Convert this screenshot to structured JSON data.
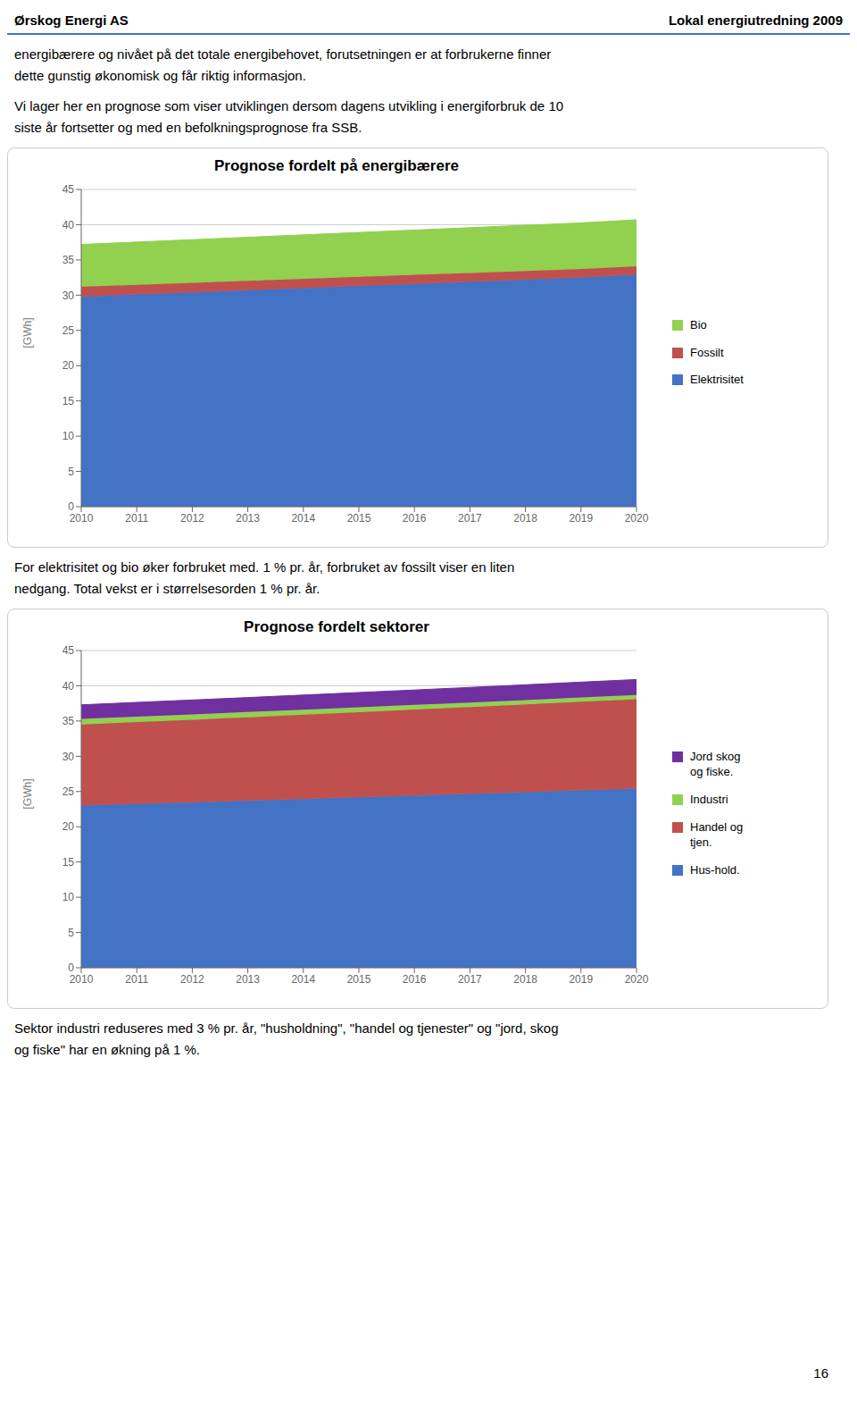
{
  "annotations": [
    "Ørskog Energi AS",
    "Lokal energiutredning 2009",
    "energibærere og nivået på det totale energibehovet, forutsetningen er at forbrukerne finner\ndette gunstig økonomisk og får riktig informasjon.",
    "Vi lager her en prognose som viser utviklingen dersom dagens utvikling i energiforbruk de 10\nsiste år fortsetter og med en befolkningsprognose fra SSB.",
    "For elektrisitet og bio øker forbruket med. 1 % pr. år, forbruket av fossilt viser en liten\nnedgang. Total vekst er i størrelsesorden 1 % pr. år.",
    "Sektor industri reduseres med  3 % pr. år, \"husholdning\", \"handel og tjenester\" og \"jord, skog\nog fiske\" har en økning på 1 %.",
    "16"
  ],
  "chart_data": [
    {
      "type": "area",
      "stacked": true,
      "grid": true,
      "title": "Prognose fordelt på energibærere",
      "ylabel": "[GWh]",
      "x": [
        2010,
        2011,
        2012,
        2013,
        2014,
        2015,
        2016,
        2017,
        2018,
        2019,
        2020
      ],
      "xlim": [
        2010,
        2020
      ],
      "xticks": [
        2010,
        2011,
        2012,
        2013,
        2014,
        2015,
        2016,
        2017,
        2018,
        2019,
        2020
      ],
      "ylim": [
        0,
        45
      ],
      "yticks": [
        0,
        5,
        10,
        15,
        20,
        25,
        30,
        35,
        40,
        45
      ],
      "series": [
        {
          "name": "Elektrisitet",
          "color": "#4472c4",
          "values": [
            29.8,
            30.1,
            30.4,
            30.7,
            31.0,
            31.3,
            31.6,
            31.9,
            32.2,
            32.5,
            32.9
          ]
        },
        {
          "name": "Fossilt",
          "color": "#c0504d",
          "values": [
            1.4,
            1.38,
            1.36,
            1.34,
            1.32,
            1.3,
            1.28,
            1.26,
            1.24,
            1.22,
            1.2
          ]
        },
        {
          "name": "Bio",
          "color": "#92d050",
          "values": [
            6.0,
            6.06,
            6.12,
            6.18,
            6.24,
            6.3,
            6.36,
            6.42,
            6.48,
            6.54,
            6.6
          ]
        }
      ]
    },
    {
      "type": "area",
      "stacked": true,
      "grid": true,
      "title": "Prognose fordelt sektorer",
      "ylabel": "[GWh]",
      "x": [
        2010,
        2011,
        2012,
        2013,
        2014,
        2015,
        2016,
        2017,
        2018,
        2019,
        2020
      ],
      "xlim": [
        2010,
        2020
      ],
      "xticks": [
        2010,
        2011,
        2012,
        2013,
        2014,
        2015,
        2016,
        2017,
        2018,
        2019,
        2020
      ],
      "ylim": [
        0,
        45
      ],
      "yticks": [
        0,
        5,
        10,
        15,
        20,
        25,
        30,
        35,
        40,
        45
      ],
      "series": [
        {
          "name": "Hus-hold.",
          "color": "#4472c4",
          "values": [
            23.0,
            23.23,
            23.46,
            23.69,
            23.93,
            24.17,
            24.41,
            24.65,
            24.9,
            25.15,
            25.4
          ]
        },
        {
          "name": "Handel og\ntjen.",
          "color": "#c0504d",
          "values": [
            11.5,
            11.62,
            11.73,
            11.85,
            11.97,
            12.09,
            12.21,
            12.33,
            12.45,
            12.58,
            12.7
          ]
        },
        {
          "name": "Industri",
          "color": "#92d050",
          "values": [
            0.8,
            0.776,
            0.753,
            0.73,
            0.708,
            0.687,
            0.666,
            0.646,
            0.627,
            0.608,
            0.59
          ]
        },
        {
          "name": "Jord skog\nog fiske.",
          "color": "#7030a0",
          "values": [
            2.0,
            2.02,
            2.04,
            2.06,
            2.08,
            2.1,
            2.12,
            2.14,
            2.16,
            2.18,
            2.2
          ]
        }
      ]
    }
  ]
}
